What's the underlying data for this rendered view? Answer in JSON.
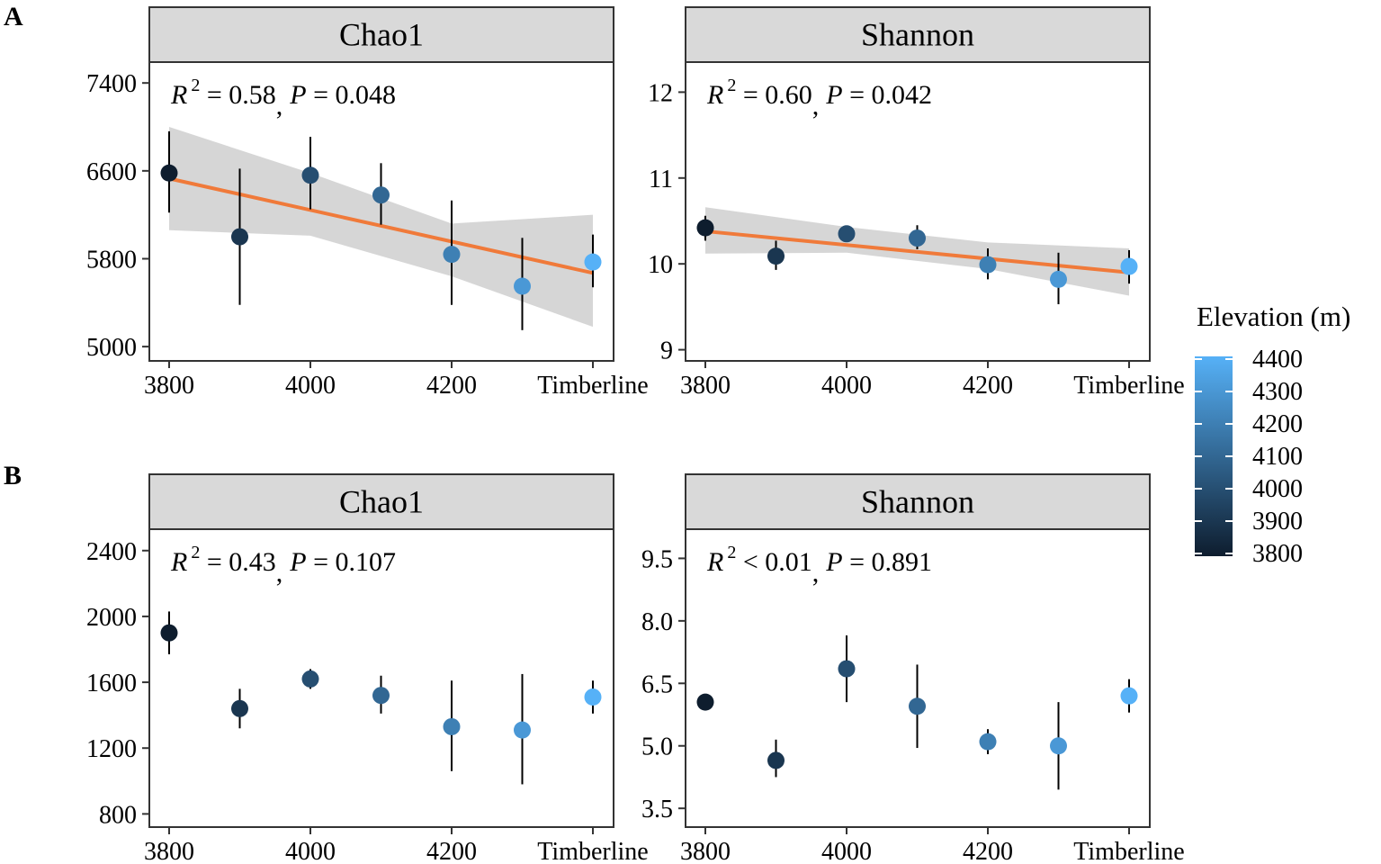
{
  "figure": {
    "panel_labels": [
      "A",
      "B"
    ],
    "legend": {
      "title": "Elevation  (m)",
      "ticks": [
        "4400",
        "4300",
        "4200",
        "4100",
        "4000",
        "3900",
        "3800"
      ],
      "range": [
        3800,
        4400
      ],
      "color_low": "#0e1d2e",
      "color_high": "#56b1f7"
    },
    "colors": {
      "fit_line": "#f07a3a",
      "ribbon": "#cfcfcf",
      "strip": "#d9d9d9",
      "error_bar": "#000000"
    }
  },
  "chart_data": [
    {
      "id": "A-chao1",
      "type": "scatter",
      "title": "Chao1",
      "x_tick_labels": [
        "3800",
        "4000",
        "4200",
        "Timberline"
      ],
      "y_tick_labels": [
        "5000",
        "5800",
        "6600",
        "7400"
      ],
      "y_ticks": [
        5000,
        5800,
        6600,
        7400
      ],
      "ylim": [
        4870,
        7590
      ],
      "annotation": {
        "r2_label": "R",
        "r2_sup": "2",
        "r2_rel": " = 0.58",
        "p_label": "P",
        "p_rel": " = 0.048"
      },
      "points": [
        {
          "x": 3800,
          "y": 6580,
          "ymin": 6220,
          "ymax": 6960,
          "elev": 3800
        },
        {
          "x": 3900,
          "y": 6000,
          "ymin": 5380,
          "ymax": 6620,
          "elev": 3900
        },
        {
          "x": 4000,
          "y": 6560,
          "ymin": 6250,
          "ymax": 6910,
          "elev": 4000
        },
        {
          "x": 4100,
          "y": 6380,
          "ymin": 6110,
          "ymax": 6670,
          "elev": 4100
        },
        {
          "x": 4200,
          "y": 5840,
          "ymin": 5380,
          "ymax": 6330,
          "elev": 4200
        },
        {
          "x": 4300,
          "y": 5550,
          "ymin": 5150,
          "ymax": 5990,
          "elev": 4300
        },
        {
          "x": 4400,
          "y": 5770,
          "ymin": 5540,
          "ymax": 6020,
          "elev": 4400
        }
      ],
      "fit": {
        "x": [
          3800,
          4400
        ],
        "y": [
          6530,
          5670
        ]
      },
      "ribbon": {
        "x": [
          3800,
          4000,
          4200,
          4400
        ],
        "lower": [
          6060,
          6010,
          5640,
          5180
        ],
        "upper": [
          7000,
          6580,
          6120,
          6200
        ]
      }
    },
    {
      "id": "A-shannon",
      "type": "scatter",
      "title": "Shannon",
      "x_tick_labels": [
        "3800",
        "4000",
        "4200",
        "Timberline"
      ],
      "y_tick_labels": [
        "9",
        "10",
        "11",
        "12"
      ],
      "y_ticks": [
        9,
        10,
        11,
        12
      ],
      "ylim": [
        8.87,
        12.35
      ],
      "annotation": {
        "r2_label": "R",
        "r2_sup": "2",
        "r2_rel": " = 0.60",
        "p_label": "P",
        "p_rel": " = 0.042"
      },
      "points": [
        {
          "x": 3800,
          "y": 10.42,
          "ymin": 10.27,
          "ymax": 10.56,
          "elev": 3800
        },
        {
          "x": 3900,
          "y": 10.09,
          "ymin": 9.93,
          "ymax": 10.27,
          "elev": 3900
        },
        {
          "x": 4000,
          "y": 10.35,
          "ymin": 10.29,
          "ymax": 10.41,
          "elev": 4000
        },
        {
          "x": 4100,
          "y": 10.3,
          "ymin": 10.17,
          "ymax": 10.45,
          "elev": 4100
        },
        {
          "x": 4200,
          "y": 9.99,
          "ymin": 9.82,
          "ymax": 10.18,
          "elev": 4200
        },
        {
          "x": 4300,
          "y": 9.82,
          "ymin": 9.53,
          "ymax": 10.13,
          "elev": 4300
        },
        {
          "x": 4400,
          "y": 9.97,
          "ymin": 9.77,
          "ymax": 10.16,
          "elev": 4400
        }
      ],
      "fit": {
        "x": [
          3800,
          4400
        ],
        "y": [
          10.38,
          9.9
        ]
      },
      "ribbon": {
        "x": [
          3800,
          4000,
          4200,
          4400
        ],
        "lower": [
          10.12,
          10.13,
          9.94,
          9.63
        ],
        "upper": [
          10.66,
          10.43,
          10.25,
          10.18
        ]
      }
    },
    {
      "id": "B-chao1",
      "type": "scatter",
      "title": "Chao1",
      "x_tick_labels": [
        "3800",
        "4000",
        "4200",
        "Timberline"
      ],
      "y_tick_labels": [
        "800",
        "1200",
        "1600",
        "2000",
        "2400"
      ],
      "y_ticks": [
        800,
        1200,
        1600,
        2000,
        2400
      ],
      "ylim": [
        720,
        2530
      ],
      "annotation": {
        "r2_label": "R",
        "r2_sup": "2",
        "r2_rel": " = 0.43",
        "p_label": "P",
        "p_rel": " = 0.107"
      },
      "points": [
        {
          "x": 3800,
          "y": 1900,
          "ymin": 1770,
          "ymax": 2030,
          "elev": 3800
        },
        {
          "x": 3900,
          "y": 1440,
          "ymin": 1320,
          "ymax": 1560,
          "elev": 3900
        },
        {
          "x": 4000,
          "y": 1620,
          "ymin": 1560,
          "ymax": 1680,
          "elev": 4000
        },
        {
          "x": 4100,
          "y": 1520,
          "ymin": 1410,
          "ymax": 1640,
          "elev": 4100
        },
        {
          "x": 4200,
          "y": 1330,
          "ymin": 1060,
          "ymax": 1610,
          "elev": 4200
        },
        {
          "x": 4300,
          "y": 1310,
          "ymin": 980,
          "ymax": 1650,
          "elev": 4300
        },
        {
          "x": 4400,
          "y": 1510,
          "ymin": 1410,
          "ymax": 1610,
          "elev": 4400
        }
      ]
    },
    {
      "id": "B-shannon",
      "type": "scatter",
      "title": "Shannon",
      "x_tick_labels": [
        "3800",
        "4000",
        "4200",
        "Timberline"
      ],
      "y_tick_labels": [
        "3.5",
        "5.0",
        "6.5",
        "8.0",
        "9.5"
      ],
      "y_ticks": [
        3.5,
        5.0,
        6.5,
        8.0,
        9.5
      ],
      "ylim": [
        3.05,
        10.2
      ],
      "annotation": {
        "r2_label": "R",
        "r2_sup": "2",
        "r2_rel": " < 0.01",
        "p_label": "P",
        "p_rel": " = 0.891"
      },
      "points": [
        {
          "x": 3800,
          "y": 6.05,
          "ymin": 5.95,
          "ymax": 6.15,
          "elev": 3800
        },
        {
          "x": 3900,
          "y": 4.65,
          "ymin": 4.25,
          "ymax": 5.15,
          "elev": 3900
        },
        {
          "x": 4000,
          "y": 6.85,
          "ymin": 6.05,
          "ymax": 7.65,
          "elev": 4000
        },
        {
          "x": 4100,
          "y": 5.95,
          "ymin": 4.95,
          "ymax": 6.95,
          "elev": 4100
        },
        {
          "x": 4200,
          "y": 5.1,
          "ymin": 4.8,
          "ymax": 5.4,
          "elev": 4200
        },
        {
          "x": 4300,
          "y": 5.0,
          "ymin": 3.95,
          "ymax": 6.05,
          "elev": 4300
        },
        {
          "x": 4400,
          "y": 6.2,
          "ymin": 5.8,
          "ymax": 6.6,
          "elev": 4400
        }
      ]
    }
  ]
}
